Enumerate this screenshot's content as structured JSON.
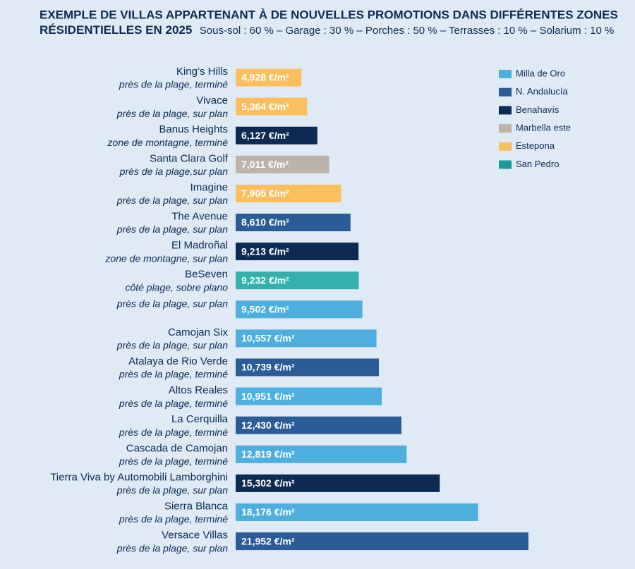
{
  "chart_data": {
    "type": "bar",
    "title": "EXEMPLE DE VILLAS APPARTENANT À DE NOUVELLES PROMOTIONS DANS DIFFÉRENTES ZONES",
    "title_line2": "RÉSIDENTIELLES EN 2025",
    "subtitle": "Sous-sol : 60 % – Garage : 30 % – Porches : 50 % – Terrasses : 10 % – Solarium : 10 %",
    "categories": [
      "King’s Hills",
      "Vivace",
      "Banus Heights",
      "Santa Clara Golf",
      "Imagine",
      "The Avenue",
      "El Madroñal",
      "BeSeven",
      null,
      "Camojan Six",
      "Atalaya de Rio Verde",
      "Altos Reales",
      "La Cerquilla",
      "Cascada de Camojan",
      "Tierra Viva by Automobili Lamborghini",
      "Sierra Blanca",
      "Versace Villas"
    ],
    "descriptions": [
      "près de la plage, terminé",
      "près de la plage, sur plan",
      "zone de montagne, terminé",
      "près de la plage,sur plan",
      "près de la plage, sur plan",
      "près de la plage, sur plan",
      "zone de montagne, sur plan",
      "côté plage, sobre plano",
      "près de la plage, sur plan",
      "près de la plage, sur plan",
      "près de la plage, terminé",
      "près de la plage, terminé",
      "près de la plage, terminé",
      "près de la plage, terminé",
      "près de la plage, sur plan",
      "près de la plage, terminé",
      "près de la plage, sur plan"
    ],
    "values": [
      4928,
      5364,
      6127,
      7011,
      7905,
      8610,
      9213,
      9232,
      9502,
      10557,
      10739,
      10951,
      12430,
      12819,
      15302,
      18176,
      21952
    ],
    "value_labels": [
      "4,928 €/m²",
      "5,364 €/m²",
      "6,127 €/m²",
      "7,011 €/m²",
      "7,905 €/m²",
      "8,610 €/m²",
      "9,213 €/m²",
      "9,232 €/m²",
      "9,502 €/m²",
      "10,557 €/m²",
      "10,739 €/m²",
      "10,951 €/m²",
      "12,430 €/m²",
      "12,819 €/m²",
      "15,302 €/m²",
      "18,176 €/m²",
      "21,952 €/m²"
    ],
    "colors": [
      "#fbbf5e",
      "#fbbf5e",
      "#0d2a52",
      "#bdb3a8",
      "#fbbf5e",
      "#2b5c96",
      "#0d2a52",
      "#34b0ad",
      "#4eaede",
      "#4eaede",
      "#2b5c96",
      "#4eaede",
      "#2b5c96",
      "#4eaede",
      "#0d2a52",
      "#4eaede",
      "#2b5c96"
    ],
    "legend": [
      {
        "name": "Milla de Oro",
        "color": "#4eaede"
      },
      {
        "name": "N. Andalucía",
        "color": "#2b5c96"
      },
      {
        "name": "Benahavís",
        "color": "#0d2a52"
      },
      {
        "name": "Marbella este",
        "color": "#bdb3a8"
      },
      {
        "name": "Estepona",
        "color": "#fbbf5e"
      },
      {
        "name": "San Pedro",
        "color": "#1a9a97"
      }
    ]
  }
}
